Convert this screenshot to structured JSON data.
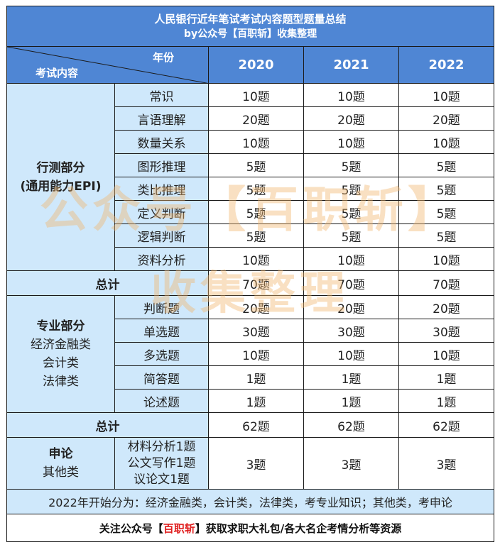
{
  "title": "人民银行近年笔试考试内容题型题量总结",
  "subtitle": "by公众号【百职斩】收集整理",
  "header": {
    "corner_top": "年份",
    "corner_bottom": "考试内容",
    "years": [
      "2020",
      "2021",
      "2022"
    ]
  },
  "section1": {
    "name": "行测部分",
    "name_sub": "(通用能力EPI)",
    "rows": [
      {
        "item": "常识",
        "values": [
          "10题",
          "10题",
          "10题"
        ]
      },
      {
        "item": "言语理解",
        "values": [
          "20题",
          "20题",
          "20题"
        ]
      },
      {
        "item": "数量关系",
        "values": [
          "10题",
          "10题",
          "10题"
        ]
      },
      {
        "item": "图形推理",
        "values": [
          "5题",
          "5题",
          "5题"
        ]
      },
      {
        "item": "类比推理",
        "values": [
          "5题",
          "5题",
          "5题"
        ]
      },
      {
        "item": "定义判断",
        "values": [
          "5题",
          "5题",
          "5题"
        ]
      },
      {
        "item": "逻辑判断",
        "values": [
          "5题",
          "5题",
          "5题"
        ]
      },
      {
        "item": "资料分析",
        "values": [
          "10题",
          "10题",
          "10题"
        ]
      }
    ],
    "total_label": "总计",
    "totals": [
      "70题",
      "70题",
      "70题"
    ]
  },
  "section2": {
    "name": "专业部分",
    "categories": [
      "经济金融类",
      "会计类",
      "法律类"
    ],
    "rows": [
      {
        "item": "判断题",
        "values": [
          "20题",
          "20题",
          "20题"
        ]
      },
      {
        "item": "单选题",
        "values": [
          "30题",
          "30题",
          "30题"
        ]
      },
      {
        "item": "多选题",
        "values": [
          "10题",
          "10题",
          "10题"
        ]
      },
      {
        "item": "简答题",
        "values": [
          "1题",
          "1题",
          "1题"
        ]
      },
      {
        "item": "论述题",
        "values": [
          "1题",
          "1题",
          "1题"
        ]
      }
    ],
    "total_label": "总计",
    "totals": [
      "62题",
      "62题",
      "62题"
    ]
  },
  "section3": {
    "name": "申论",
    "name_sub": "其他类",
    "items": [
      "材料分析1题",
      "公文写作1题",
      "议论文1题"
    ],
    "values": [
      "3题",
      "3题",
      "3题"
    ]
  },
  "note": "2022年开始分为：经济金融类，会计类，法律类，考专业知识；其他类，考申论",
  "footer": {
    "prefix": "关注公众号【",
    "highlight": "百职斩",
    "suffix": "】获取求职大礼包/各大名企考情分析等资源"
  },
  "watermark": {
    "line1": "公众号【百职斩】",
    "line2": "收集整理"
  },
  "colors": {
    "header_blue": "#4f86d4",
    "section_blue": "#cfe8fb",
    "highlight_red": "#e02020",
    "watermark": "#f1b46e"
  }
}
